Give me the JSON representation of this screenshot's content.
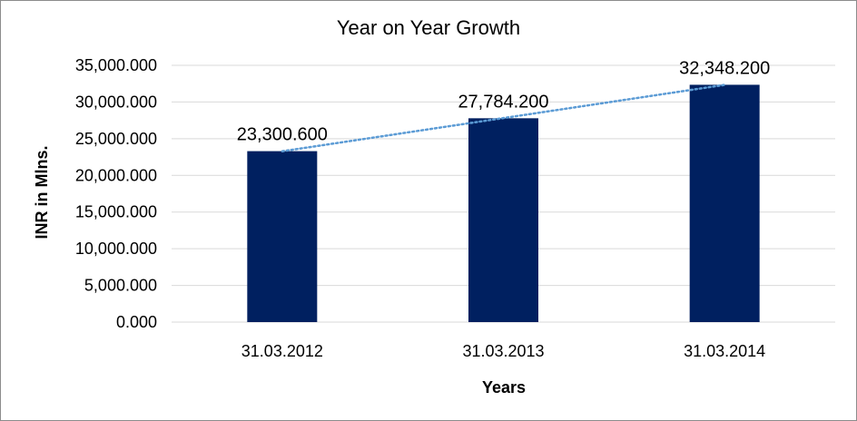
{
  "chart_data": {
    "type": "bar",
    "title": "Year on Year Growth",
    "xlabel": "Years",
    "ylabel": "INR in Mlns.",
    "categories": [
      "31.03.2012",
      "31.03.2013",
      "31.03.2014"
    ],
    "values": [
      23300.6,
      27784.2,
      32348.2
    ],
    "data_labels": [
      "23,300.600",
      "27,784.200",
      "32,348.200"
    ],
    "ylim": [
      0,
      35000
    ],
    "y_ticks": [
      {
        "value": 0,
        "label": "0.000"
      },
      {
        "value": 5000,
        "label": "5,000.000"
      },
      {
        "value": 10000,
        "label": "10,000.000"
      },
      {
        "value": 15000,
        "label": "15,000.000"
      },
      {
        "value": 20000,
        "label": "20,000.000"
      },
      {
        "value": 25000,
        "label": "25,000.000"
      },
      {
        "value": 30000,
        "label": "30,000.000"
      },
      {
        "value": 35000,
        "label": "35,000.000"
      }
    ],
    "grid": true,
    "trendline": {
      "type": "linear",
      "style": "dotted"
    },
    "colors": {
      "bar": "#002060",
      "trendline": "#5B9BD5",
      "grid": "#D9D9D9"
    }
  }
}
